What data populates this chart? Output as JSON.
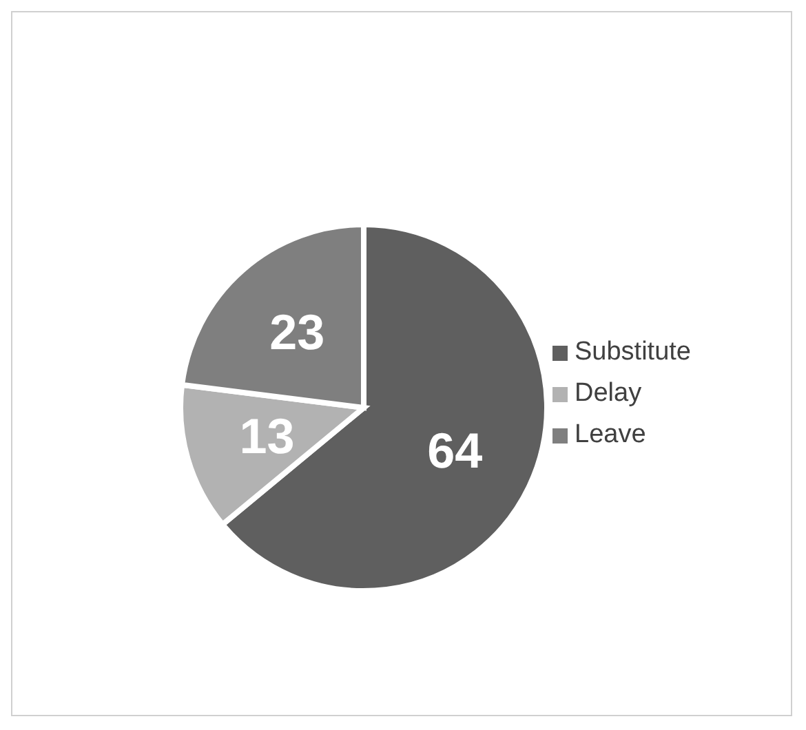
{
  "chart_data": {
    "type": "pie",
    "categories": [
      "Substitute",
      "Delay",
      "Leave"
    ],
    "values": [
      64,
      13,
      23
    ],
    "colors": [
      "#5f5f5f",
      "#b2b2b2",
      "#7f7f7f"
    ],
    "data_labels": true,
    "legend": "right"
  }
}
